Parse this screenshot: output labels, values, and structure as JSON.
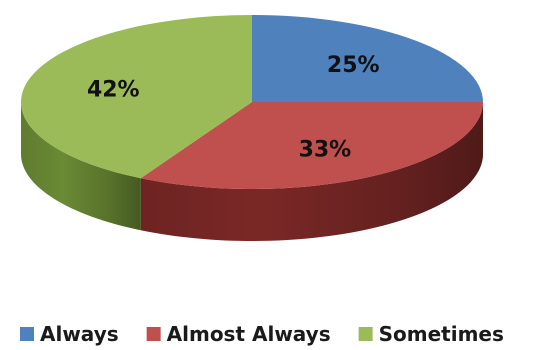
{
  "chart_data": {
    "type": "pie",
    "title": "",
    "categories": [
      "Always",
      "Almost Always",
      "Sometimes"
    ],
    "values": [
      25,
      33,
      42
    ],
    "labels": [
      "25%",
      "33%",
      "42%"
    ],
    "colors": [
      "#4f81bd",
      "#c0504d",
      "#9bbb59"
    ],
    "side_colors": [
      "#33567f",
      "#7a2826",
      "#6a8a34"
    ],
    "style": "3d",
    "legend_position": "bottom"
  }
}
